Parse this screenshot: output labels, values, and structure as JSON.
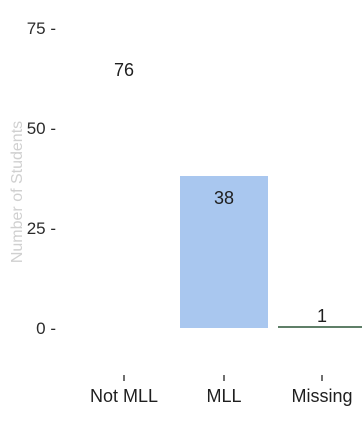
{
  "chart_data": {
    "type": "bar",
    "title": "",
    "xlabel": "",
    "ylabel": "Number of Students",
    "categories": [
      "Not MLL",
      "MLL",
      "Missing"
    ],
    "values": [
      76,
      38,
      1
    ],
    "data_labels": [
      "76",
      "38",
      "1"
    ],
    "ylim": [
      0,
      100
    ],
    "yticks": [
      0,
      25,
      50,
      75
    ],
    "ytick_labels": [
      "0",
      "25",
      "50",
      "75"
    ],
    "grid": false,
    "legend": "none",
    "colors": {
      "bar_fill": "#a9c7ef",
      "bar_outline": "#5f7f68"
    }
  }
}
